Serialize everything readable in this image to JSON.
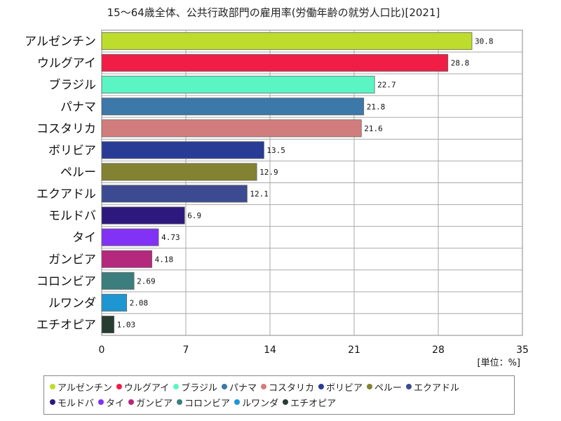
{
  "chart_data": {
    "type": "bar",
    "orientation": "horizontal",
    "title": "15～64歳全体、公共行政部門の雇用率(労働年齢の就労人口比)[2021]",
    "unit_label": "[単位：%]",
    "xlim": [
      0,
      35
    ],
    "x_ticks": [
      0,
      7,
      14,
      21,
      28,
      35
    ],
    "grid": true,
    "legend_placement": "bottom",
    "categories": [
      "アルゼンチン",
      "ウルグアイ",
      "ブラジル",
      "パナマ",
      "コスタリカ",
      "ボリビア",
      "ペルー",
      "エクアドル",
      "モルドバ",
      "タイ",
      "ガンビア",
      "コロンビア",
      "ルワンダ",
      "エチオピア"
    ],
    "values": [
      30.8,
      28.8,
      22.7,
      21.8,
      21.6,
      13.5,
      12.9,
      12.1,
      6.9,
      4.73,
      4.18,
      2.69,
      2.08,
      1.03
    ],
    "value_labels": [
      "30.8",
      "28.8",
      "22.7",
      "21.8",
      "21.6",
      "13.5",
      "12.9",
      "12.1",
      "6.9",
      "4.73",
      "4.18",
      "2.69",
      "2.08",
      "1.03"
    ],
    "colors": [
      "#bedc2c",
      "#f01e46",
      "#5af5c3",
      "#3c78a8",
      "#d27d7d",
      "#283c96",
      "#828232",
      "#3c4b91",
      "#2d197d",
      "#8232f5",
      "#b4287d",
      "#3c7d7d",
      "#1e96d2",
      "#283c32"
    ]
  }
}
